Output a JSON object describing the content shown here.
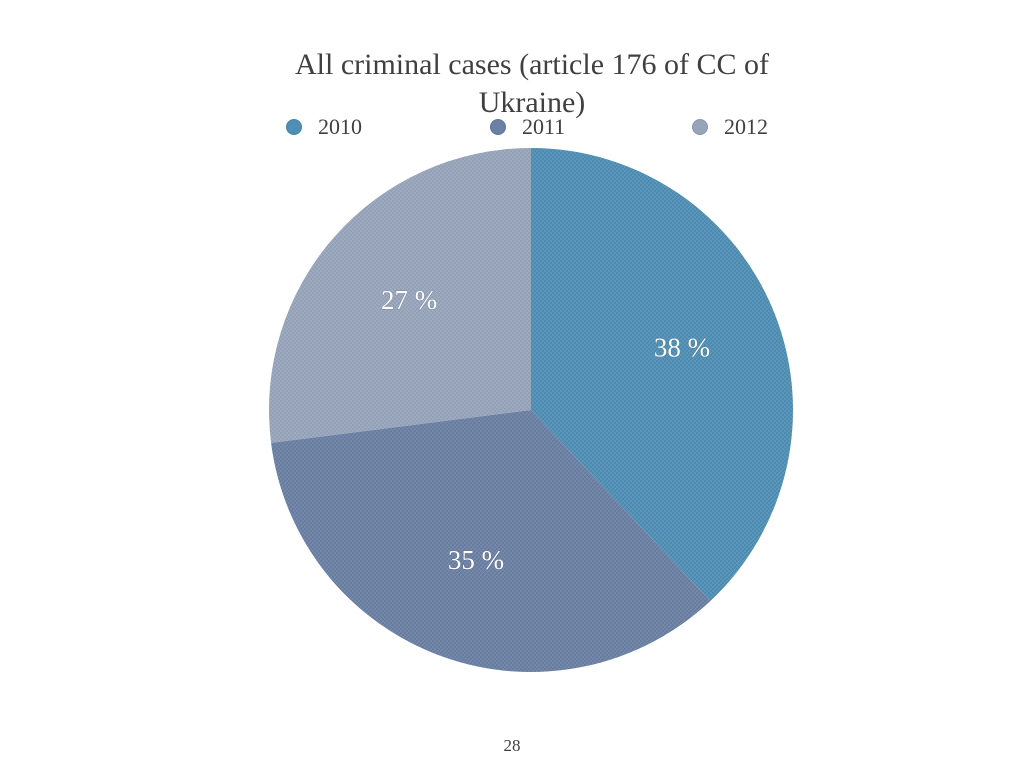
{
  "slide": {
    "page_number": "28"
  },
  "chart_data": {
    "type": "pie",
    "title": "All criminal cases (article 176 of CC of Ukraine)",
    "categories": [
      "2010",
      "2011",
      "2012"
    ],
    "values": [
      38,
      35,
      27
    ],
    "data_labels": [
      "38 %",
      "35 %",
      "27 %"
    ],
    "colors": [
      "#4f8fb5",
      "#6b80a4",
      "#97a5bb"
    ],
    "legend_position": "top",
    "start_angle": "12 o'clock, clockwise"
  }
}
